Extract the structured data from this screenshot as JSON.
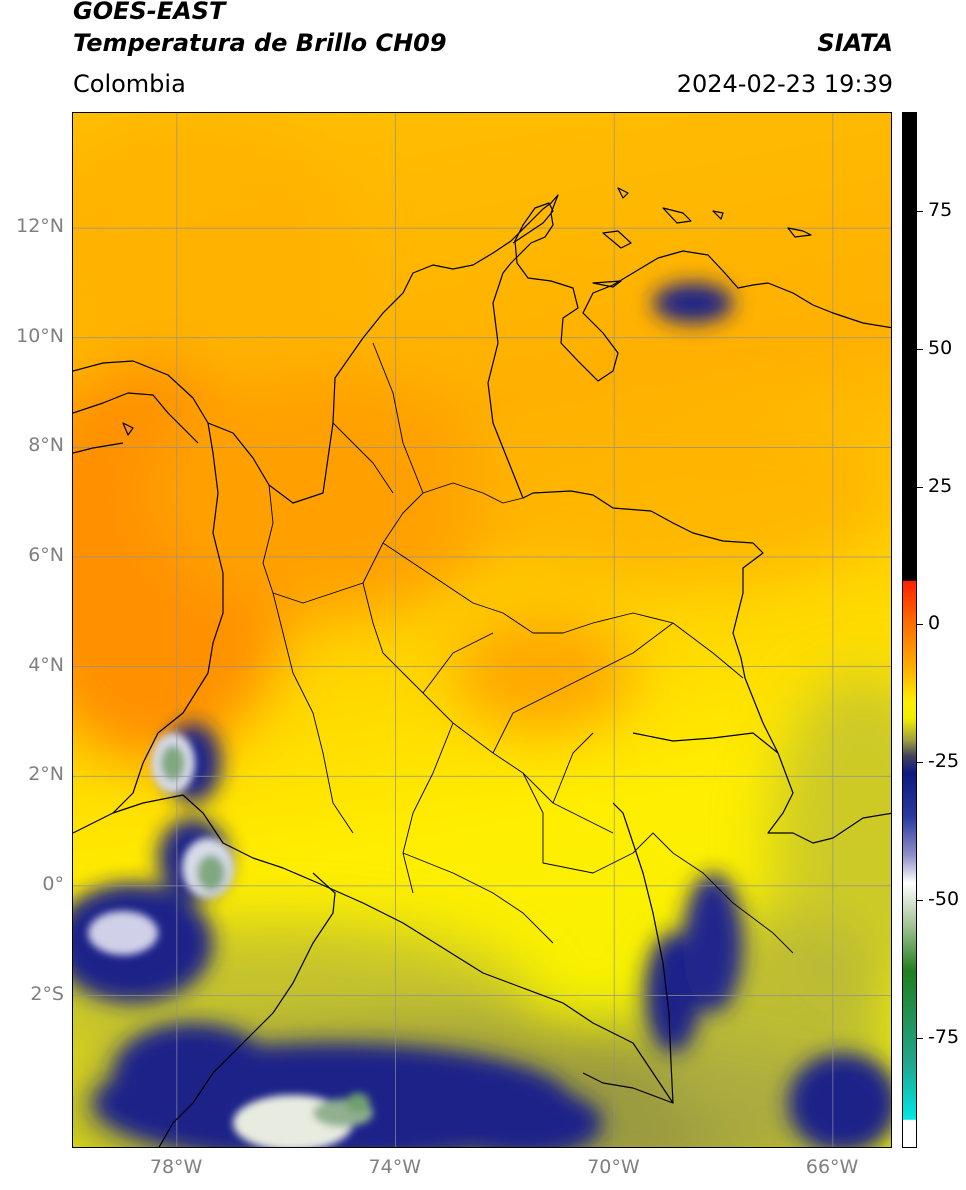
{
  "header": {
    "satellite": "GOES-EAST",
    "product": "Temperatura de Brillo CH09",
    "brand": "SIATA",
    "region": "Colombia",
    "timestamp": "2024-02-23 19:39"
  },
  "map": {
    "extent": {
      "lon_min": -79.9,
      "lon_max": -64.9,
      "lat_min": -4.8,
      "lat_max": 14.1
    },
    "gridlines": true,
    "lon_ticks": [
      {
        "value": -78,
        "label": "78°W"
      },
      {
        "value": -74,
        "label": "74°W"
      },
      {
        "value": -70,
        "label": "70°W"
      },
      {
        "value": -66,
        "label": "66°W"
      }
    ],
    "lat_ticks": [
      {
        "value": 12,
        "label": "12°N"
      },
      {
        "value": 10,
        "label": "10°N"
      },
      {
        "value": 8,
        "label": "8°N"
      },
      {
        "value": 6,
        "label": "6°N"
      },
      {
        "value": 4,
        "label": "4°N"
      },
      {
        "value": 2,
        "label": "2°N"
      },
      {
        "value": 0,
        "label": "0°"
      },
      {
        "value": -2,
        "label": "2°S"
      }
    ]
  },
  "colorbar": {
    "range": [
      -95,
      93
    ],
    "ticks": [
      {
        "value": 75,
        "label": "75"
      },
      {
        "value": 50,
        "label": "50"
      },
      {
        "value": 25,
        "label": "25"
      },
      {
        "value": 0,
        "label": "0"
      },
      {
        "value": -25,
        "label": "-25"
      },
      {
        "value": -50,
        "label": "-50"
      },
      {
        "value": -75,
        "label": "-75"
      }
    ],
    "stops": [
      {
        "value": 93,
        "color": "#000000"
      },
      {
        "value": 8,
        "color": "#000000"
      },
      {
        "value": 7.9,
        "color": "#ff2000"
      },
      {
        "value": 0,
        "color": "#ff7000"
      },
      {
        "value": -8,
        "color": "#ffb000"
      },
      {
        "value": -14,
        "color": "#ffee00"
      },
      {
        "value": -17,
        "color": "#f0f000"
      },
      {
        "value": -21,
        "color": "#a0a040"
      },
      {
        "value": -24,
        "color": "#404060"
      },
      {
        "value": -27,
        "color": "#101880"
      },
      {
        "value": -35,
        "color": "#2a3aa0"
      },
      {
        "value": -42,
        "color": "#9090c8"
      },
      {
        "value": -47,
        "color": "#ffffff"
      },
      {
        "value": -55,
        "color": "#a0c090"
      },
      {
        "value": -63,
        "color": "#208020"
      },
      {
        "value": -80,
        "color": "#20a890"
      },
      {
        "value": -90,
        "color": "#00e8e8"
      },
      {
        "value": -90.1,
        "color": "#ffffff"
      },
      {
        "value": -95,
        "color": "#ffffff"
      }
    ]
  }
}
